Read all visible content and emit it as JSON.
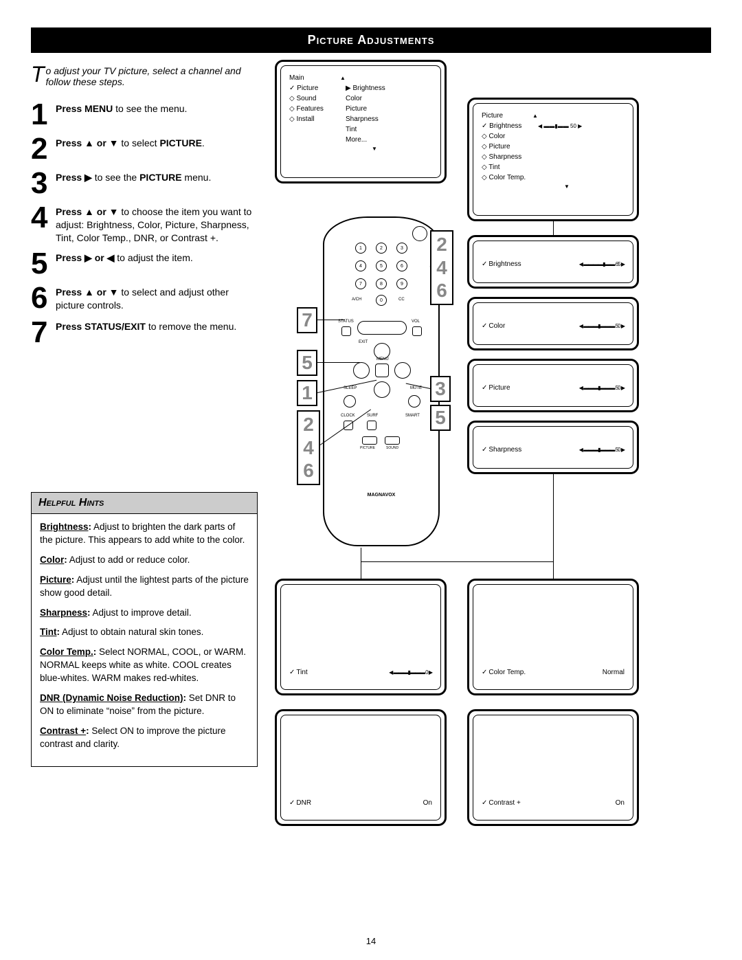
{
  "title": "Picture Adjustments",
  "page_number": "14",
  "intro_prefix": "T",
  "intro_rest": "o adjust your TV picture, select a channel and follow these steps.",
  "steps": [
    {
      "n": "1",
      "html": "<b>Press MENU</b> to see the menu."
    },
    {
      "n": "2",
      "html": "<b>Press ▲ or ▼</b> to select <b>PICTURE</b>."
    },
    {
      "n": "3",
      "html": "<b>Press ▶</b> to see the <b>PICTURE</b> menu."
    },
    {
      "n": "4",
      "html": "<b>Press ▲ or ▼</b> to choose the item you want to adjust: Brightness, Color, Picture, Sharpness, Tint, Color Temp., DNR, or Contrast +."
    },
    {
      "n": "5",
      "html": "<b>Press ▶ or ◀</b> to adjust the item."
    },
    {
      "n": "6",
      "html": "<b>Press ▲ or ▼</b> to select and adjust other picture controls."
    },
    {
      "n": "7",
      "html": "<b>Press STATUS/EXIT</b> to remove the menu."
    }
  ],
  "hints_title": "Helpful Hints",
  "hints": [
    "<b><u>Brightness</u>:</b> Adjust to brighten the dark parts of the picture. This appears to add white to the color.",
    "<b><u>Color</u>:</b> Adjust to add or reduce color.",
    "<b><u>Picture</u>:</b> Adjust until the lightest parts of the picture show good detail.",
    "<b><u>Sharpness</u>:</b> Adjust to improve detail.",
    "<b><u>Tint</u>:</b> Adjust to obtain natural skin tones.",
    "<b><u>Color Temp.</u>:</b> Select NORMAL, COOL, or WARM. NORMAL keeps white as white. COOL creates blue-whites. WARM makes red-whites.",
    "<b><u>DNR (Dynamic Noise Reduction)</u>:</b> Set DNR to ON to eliminate “noise” from the picture.",
    "<b><u>Contrast +</u>:</b> Select ON to improve the picture contrast and clarity."
  ],
  "main_menu": {
    "header": "Main",
    "items": [
      {
        "l": "Picture",
        "r": "Brightness",
        "sel": true
      },
      {
        "l": "Sound",
        "r": "Color"
      },
      {
        "l": "Features",
        "r": "Picture"
      },
      {
        "l": "Install",
        "r": "Sharpness"
      },
      {
        "l": "",
        "r": "Tint"
      },
      {
        "l": "",
        "r": "More..."
      }
    ]
  },
  "picture_menu": {
    "header": "Picture",
    "brightness_label": "Brightness",
    "brightness_val": "50",
    "items": [
      "Color",
      "Picture",
      "Sharpness",
      "Tint",
      "Color Temp."
    ]
  },
  "sliders": {
    "brightness": {
      "label": "Brightness",
      "val": "65"
    },
    "color": {
      "label": "Color",
      "val": "50"
    },
    "picture": {
      "label": "Picture",
      "val": "50"
    },
    "sharpness": {
      "label": "Sharpness",
      "val": "50"
    },
    "tint": {
      "label": "Tint",
      "val": "0"
    },
    "colortemp": {
      "label": "Color Temp.",
      "val": "Normal"
    },
    "dnr": {
      "label": "DNR",
      "val": "On"
    },
    "contrast": {
      "label": "Contrast +",
      "val": "On"
    }
  },
  "remote_brand": "MAGNAVOX",
  "remote_labels": {
    "ach": "A/CH",
    "cc": "CC",
    "status": "STATUS",
    "vol": "VOL",
    "exit": "EXIT",
    "menu": "MENU",
    "sleep": "SLEEP",
    "mute": "MUTE",
    "clock": "CLOCK",
    "surf": "SURF",
    "smart": "SMART",
    "picture": "PICTURE",
    "sound": "SOUND"
  },
  "callouts": {
    "left_7": "7",
    "left_5": "5",
    "left_1": "1",
    "left_stack_top": "2",
    "left_stack_mid": "4",
    "left_stack_bot": "6",
    "right_stack_top": "2",
    "right_stack_mid": "4",
    "right_stack_bot": "6",
    "right_3": "3",
    "right_5": "5"
  },
  "styles": {
    "bar_bg": "#000000",
    "bar_fg": "#ffffff",
    "hints_bg": "#cccccc",
    "callout_fg": "#888888"
  }
}
